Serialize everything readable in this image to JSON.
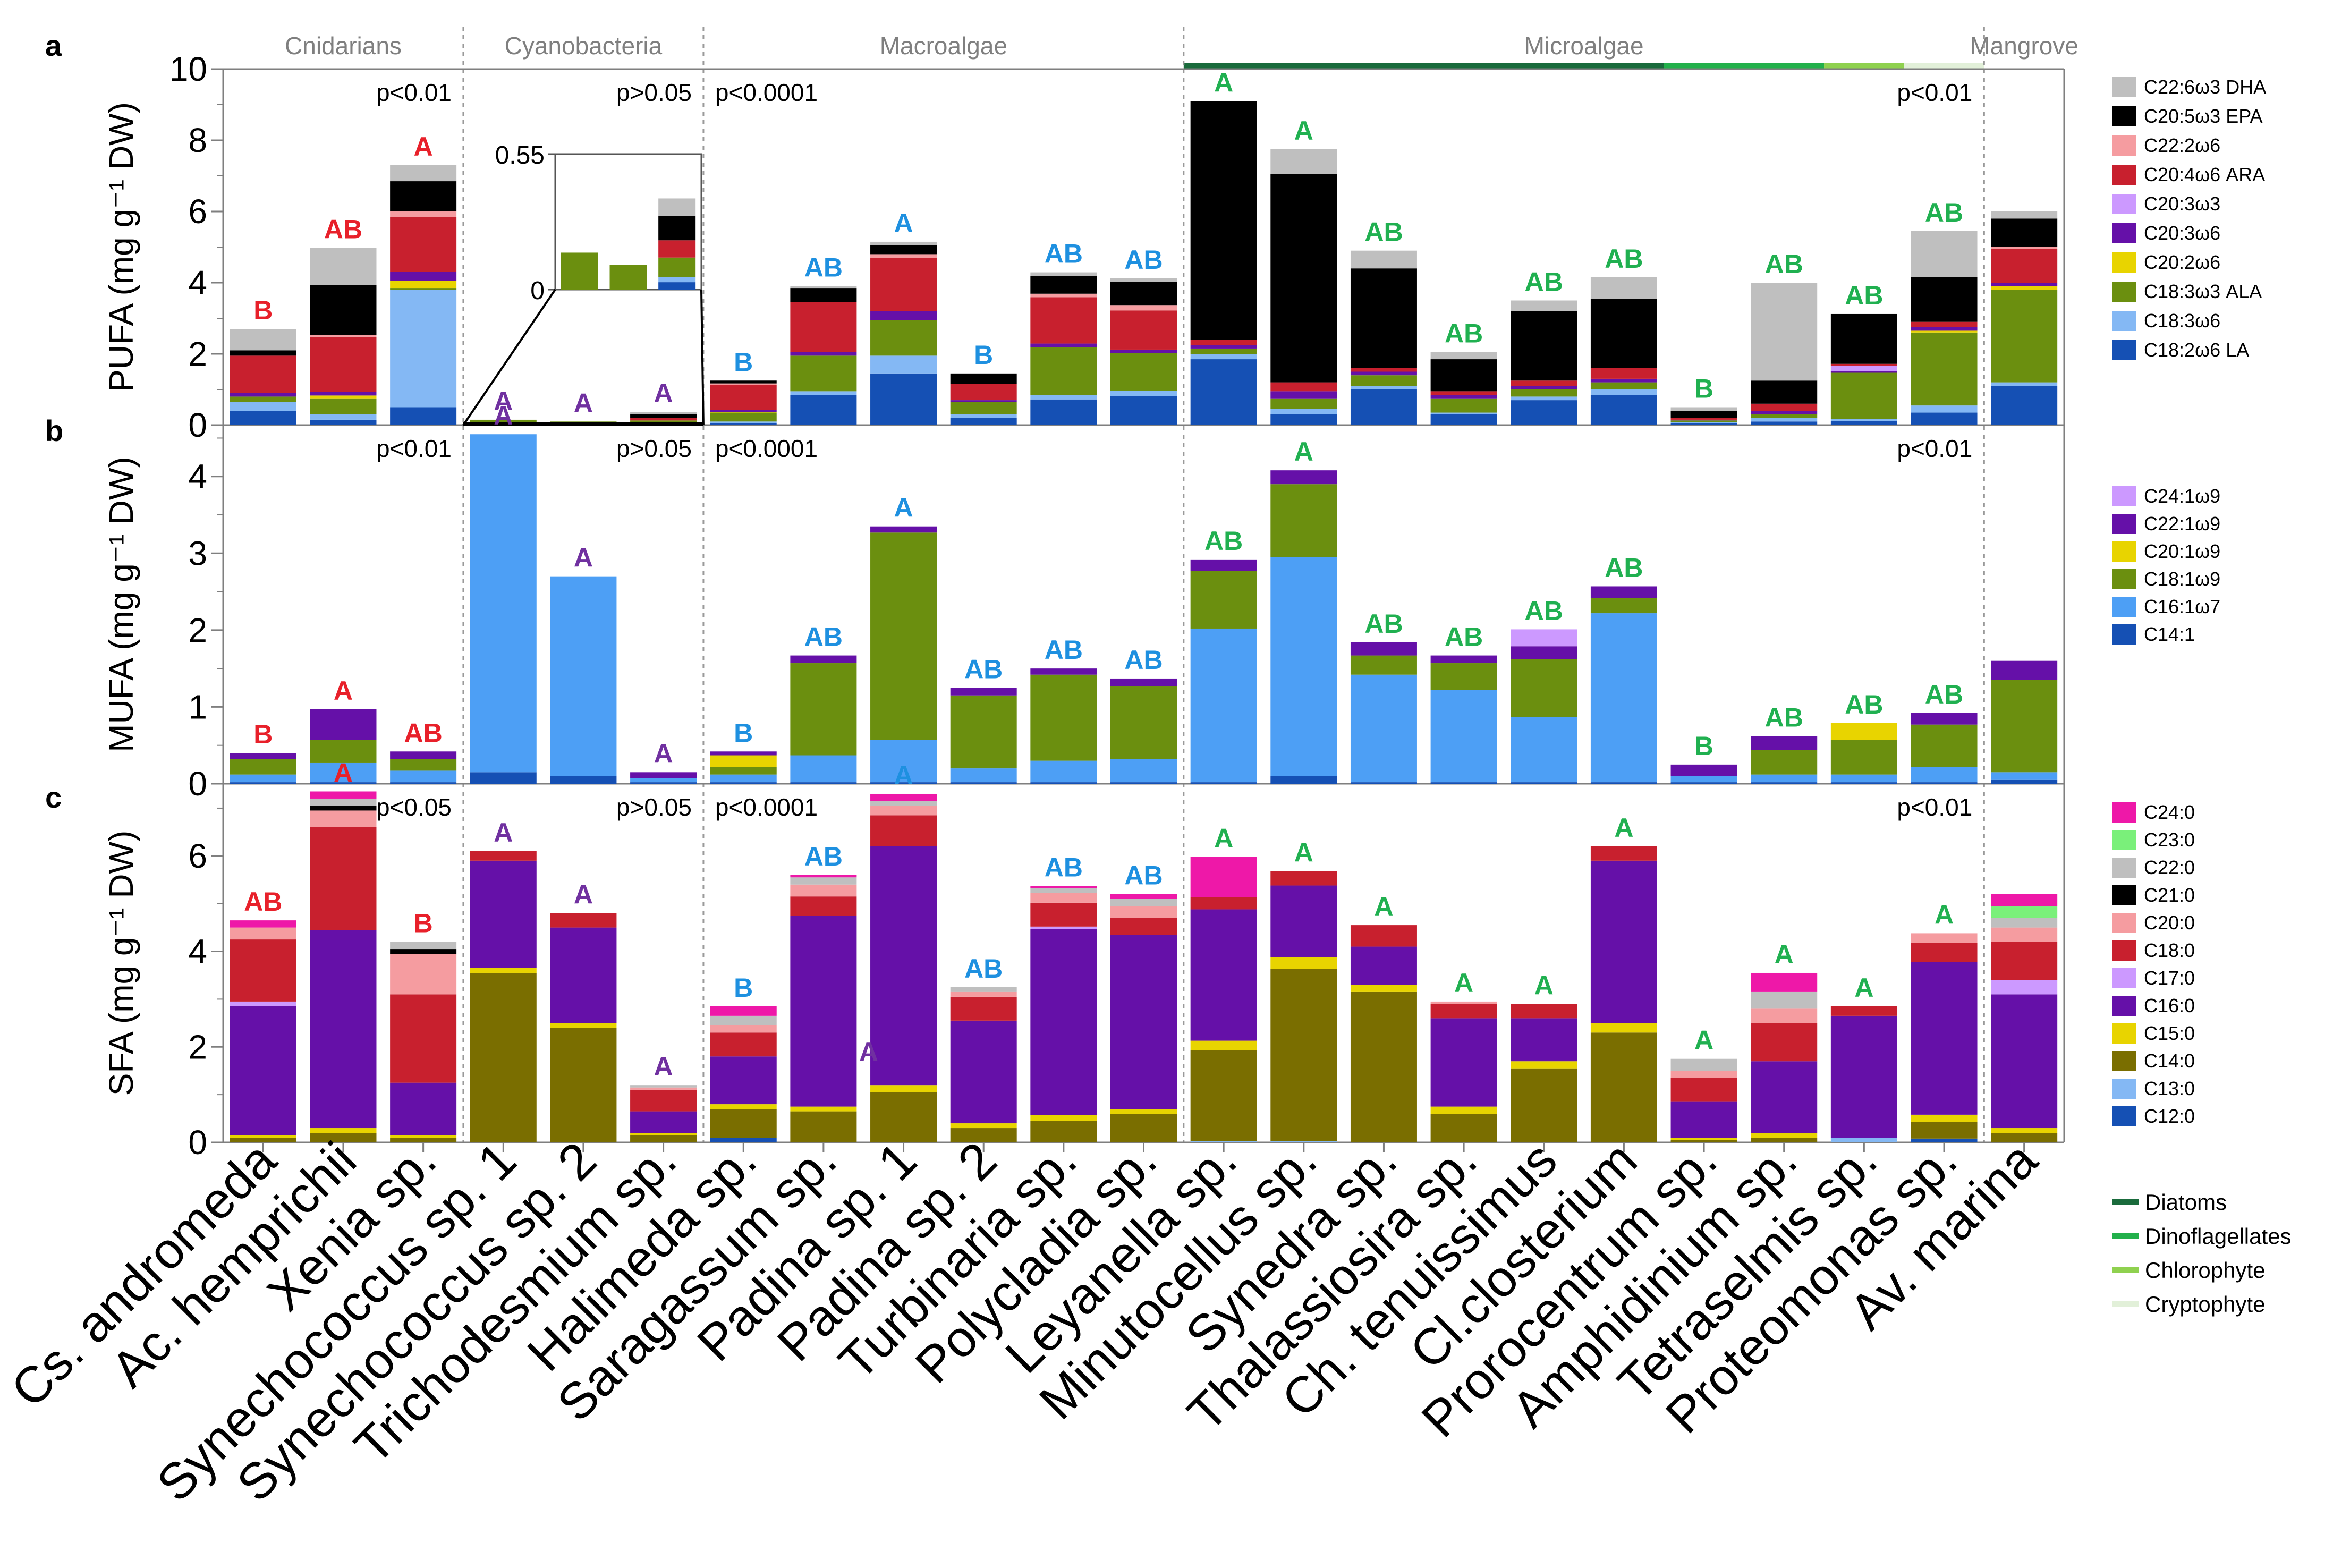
{
  "figure": {
    "group_labels": [
      "Cnidarians",
      "Cyanobacteria",
      "Macroalgae",
      "Microalgae",
      "Mangrove"
    ],
    "microalgae_classes": [
      {
        "name": "Diatoms",
        "color": "#1a6b3c"
      },
      {
        "name": "Dinoflagellates",
        "color": "#22b04b"
      },
      {
        "name": "Chlorophyte",
        "color": "#8fd14f"
      },
      {
        "name": "Cryptophyte",
        "color": "#e2f0d9"
      }
    ],
    "microalgae_bar_spans": [
      [
        "Leyanella sp.",
        "Cl.closterium"
      ],
      [
        "Prorocentrum sp.",
        "Amphidinium sp."
      ],
      [
        "Tetraselmis sp."
      ],
      [
        "Proteomonas sp."
      ]
    ],
    "taxa": [
      "Cs. andromeda",
      "Ac. hemprichii",
      "Xenia sp.",
      "Synechococcus sp. 1",
      "Synechococcus sp. 2",
      "Trichodesmium sp.",
      "Halimeda sp.",
      "Saragassum sp.",
      "Padina sp. 1",
      "Padina sp. 2",
      "Turbinaria sp.",
      "Polycladia sp.",
      "Leyanella sp.",
      "Minutocellus sp.",
      "Synedra sp.",
      "Thalassiosira sp.",
      "Ch. tenuissimus",
      "Cl.closterium",
      "Prorocentrum sp.",
      "Amphidinium sp.",
      "Tetraselmis sp.",
      "Proteomonas sp.",
      "Av. marina"
    ],
    "group_of_taxon": [
      0,
      0,
      0,
      1,
      1,
      1,
      2,
      2,
      2,
      2,
      2,
      2,
      3,
      3,
      3,
      3,
      3,
      3,
      3,
      3,
      3,
      3,
      4
    ],
    "letter_colors": [
      "#e8202a",
      "#7030a0",
      "#1e90e0",
      "#20b050",
      "#000000"
    ]
  },
  "chart_data": [
    {
      "panel": "a",
      "type": "bar",
      "stacked": true,
      "ylabel": "PUFA (mg g⁻¹ DW)",
      "ylim": [
        0,
        10
      ],
      "yticks": [
        "0",
        "2",
        "4",
        "6",
        "8",
        "10"
      ],
      "group_pvalues": [
        "p<0.01",
        "p>0.05",
        "p<0.0001",
        "p<0.01",
        ""
      ],
      "categories": [
        "Cs. andromeda",
        "Ac. hemprichii",
        "Xenia sp.",
        "Synechococcus sp. 1",
        "Synechococcus sp. 2",
        "Trichodesmium sp.",
        "Halimeda sp.",
        "Saragassum sp.",
        "Padina sp. 1",
        "Padina sp. 2",
        "Turbinaria sp.",
        "Polycladia sp.",
        "Leyanella sp.",
        "Minutocellus sp.",
        "Synedra sp.",
        "Thalassiosira sp.",
        "Ch. tenuissimus",
        "Cl.closterium",
        "Prorocentrum sp.",
        "Amphidinium sp.",
        "Tetraselmis sp.",
        "Proteomonas sp.",
        "Av. marina"
      ],
      "letters": [
        "B",
        "AB",
        "A",
        "A",
        "A",
        "A",
        "B",
        "AB",
        "A",
        "B",
        "AB",
        "AB",
        "A",
        "A",
        "AB",
        "AB",
        "AB",
        "AB",
        "B",
        "AB",
        "AB",
        "AB",
        ""
      ],
      "series": [
        {
          "name": "C18:2ω6 LA",
          "color": "#1550b4",
          "values": [
            0.4,
            0.15,
            0.5,
            0,
            0,
            0.03,
            0.05,
            0.85,
            1.45,
            0.2,
            0.72,
            0.82,
            1.85,
            0.3,
            1.0,
            0.3,
            0.7,
            0.85,
            0.05,
            0.1,
            0.12,
            0.35,
            1.1
          ]
        },
        {
          "name": "C18:3ω6",
          "color": "#84b8f4",
          "values": [
            0.25,
            0.15,
            3.3,
            0,
            0,
            0.02,
            0.05,
            0.1,
            0.5,
            0.1,
            0.12,
            0.15,
            0.15,
            0.15,
            0.1,
            0.05,
            0.1,
            0.15,
            0.03,
            0.1,
            0.05,
            0.2,
            0.1
          ]
        },
        {
          "name": "C18:3ω3 ALA",
          "color": "#6b8f0f",
          "values": [
            0.15,
            0.45,
            0.05,
            0.15,
            0.1,
            0.08,
            0.25,
            1.0,
            1.0,
            0.35,
            1.35,
            1.05,
            0.15,
            0.3,
            0.3,
            0.4,
            0.2,
            0.2,
            0.05,
            0.1,
            1.3,
            2.05,
            2.6
          ]
        },
        {
          "name": "C20:2ω6",
          "color": "#e8d400",
          "values": [
            0,
            0.08,
            0.2,
            0,
            0,
            0,
            0.02,
            0,
            0,
            0,
            0,
            0,
            0,
            0,
            0,
            0,
            0,
            0,
            0,
            0,
            0,
            0.05,
            0.1
          ]
        },
        {
          "name": "C20:3ω6",
          "color": "#6510a8",
          "values": [
            0.1,
            0.1,
            0.25,
            0,
            0,
            0,
            0.05,
            0.1,
            0.25,
            0.05,
            0.1,
            0.1,
            0.1,
            0.2,
            0.1,
            0.1,
            0.1,
            0.1,
            0.02,
            0.1,
            0.05,
            0.1,
            0.1
          ]
        },
        {
          "name": "C20:3ω3",
          "color": "#cc99ff",
          "values": [
            0,
            0,
            0,
            0,
            0,
            0,
            0,
            0,
            0,
            0,
            0,
            0,
            0,
            0,
            0,
            0,
            0,
            0,
            0,
            0,
            0.15,
            0,
            0
          ]
        },
        {
          "name": "C20:4ω6 ARA",
          "color": "#c8202e",
          "values": [
            1.05,
            1.55,
            1.55,
            0,
            0,
            0.07,
            0.7,
            1.4,
            1.5,
            0.45,
            1.3,
            1.1,
            0.15,
            0.25,
            0.1,
            0.1,
            0.15,
            0.3,
            0.05,
            0.2,
            0.05,
            0.15,
            0.95
          ]
        },
        {
          "name": "C22:2ω6",
          "color": "#f59ca0",
          "values": [
            0,
            0.05,
            0.15,
            0,
            0,
            0,
            0.05,
            0,
            0.1,
            0,
            0.1,
            0.15,
            0,
            0,
            0,
            0,
            0,
            0,
            0,
            0,
            0,
            0,
            0.05
          ]
        },
        {
          "name": "C20:5ω3 EPA",
          "color": "#000000",
          "values": [
            0.15,
            1.4,
            0.85,
            0,
            0,
            0.1,
            0.08,
            0.4,
            0.25,
            0.3,
            0.5,
            0.65,
            6.7,
            5.85,
            2.8,
            0.9,
            1.95,
            1.95,
            0.2,
            0.65,
            1.4,
            1.25,
            0.8
          ]
        },
        {
          "name": "C22:6ω3 DHA",
          "color": "#bfbfbf",
          "values": [
            0.6,
            1.05,
            0.45,
            0,
            0,
            0.07,
            0,
            0.05,
            0.1,
            0,
            0.1,
            0.1,
            0,
            0.7,
            0.5,
            0.2,
            0.3,
            0.6,
            0.1,
            2.75,
            0,
            1.3,
            0.2
          ]
        }
      ],
      "inset": {
        "ylim": [
          0,
          0.55
        ],
        "yticks": [
          "0",
          "0.55"
        ]
      }
    },
    {
      "panel": "b",
      "type": "bar",
      "stacked": true,
      "ylabel": "MUFA (mg g⁻¹ DW)",
      "ylim": [
        0,
        4.6
      ],
      "yticks": [
        "0",
        "1",
        "2",
        "3",
        "4"
      ],
      "group_pvalues": [
        "p<0.01",
        "p>0.05",
        "p<0.0001",
        "p<0.01",
        ""
      ],
      "categories": [
        "Cs. andromeda",
        "Ac. hemprichii",
        "Xenia sp.",
        "Synechococcus sp. 1",
        "Synechococcus sp. 2",
        "Trichodesmium sp.",
        "Halimeda sp.",
        "Saragassum sp.",
        "Padina sp. 1",
        "Padina sp. 2",
        "Turbinaria sp.",
        "Polycladia sp.",
        "Leyanella sp.",
        "Minutocellus sp.",
        "Synedra sp.",
        "Thalassiosira sp.",
        "Ch. tenuissimus",
        "Cl.closterium",
        "Prorocentrum sp.",
        "Amphidinium sp.",
        "Tetraselmis sp.",
        "Proteomonas sp.",
        "Av. marina"
      ],
      "letters": [
        "B",
        "A",
        "AB",
        "A",
        "A",
        "A",
        "B",
        "AB",
        "A",
        "AB",
        "AB",
        "AB",
        "AB",
        "A",
        "AB",
        "AB",
        "AB",
        "AB",
        "B",
        "AB",
        "AB",
        "AB",
        ""
      ],
      "series": [
        {
          "name": "C14:1",
          "color": "#1550b4",
          "values": [
            0.02,
            0.02,
            0.02,
            0.15,
            0.1,
            0.02,
            0.02,
            0.02,
            0.02,
            0.02,
            0.02,
            0.02,
            0.02,
            0.1,
            0.02,
            0.02,
            0.02,
            0.02,
            0.02,
            0.02,
            0.02,
            0.02,
            0.05
          ]
        },
        {
          "name": "C16:1ω7",
          "color": "#4d9ff5",
          "values": [
            0.1,
            0.25,
            0.15,
            4.4,
            2.6,
            0.05,
            0.1,
            0.35,
            0.55,
            0.18,
            0.28,
            0.3,
            2.0,
            2.85,
            1.4,
            1.2,
            0.85,
            2.2,
            0.08,
            0.1,
            0.1,
            0.2,
            0.1
          ]
        },
        {
          "name": "C18:1ω9",
          "color": "#6b8f0f",
          "values": [
            0.2,
            0.3,
            0.15,
            0,
            0,
            0,
            0.1,
            1.2,
            2.7,
            0.95,
            1.12,
            0.95,
            0.75,
            0.95,
            0.25,
            0.35,
            0.75,
            0.2,
            0,
            0.32,
            0.45,
            0.55,
            1.2
          ]
        },
        {
          "name": "C20:1ω9",
          "color": "#e8d400",
          "values": [
            0,
            0,
            0,
            0,
            0,
            0,
            0.15,
            0,
            0,
            0,
            0,
            0,
            0,
            0,
            0,
            0,
            0,
            0,
            0,
            0,
            0.22,
            0,
            0
          ]
        },
        {
          "name": "C22:1ω9",
          "color": "#6510a8",
          "values": [
            0.08,
            0.4,
            0.1,
            0,
            0,
            0.08,
            0.05,
            0.1,
            0.08,
            0.1,
            0.08,
            0.1,
            0.15,
            0.18,
            0.17,
            0.1,
            0.17,
            0.15,
            0.15,
            0.18,
            0,
            0.15,
            0.25
          ]
        },
        {
          "name": "C24:1ω9",
          "color": "#cc99ff",
          "values": [
            0,
            0,
            0,
            0,
            0,
            0,
            0,
            0,
            0,
            0,
            0,
            0,
            0,
            0,
            0,
            0,
            0.22,
            0,
            0,
            0,
            0,
            0,
            0
          ]
        }
      ]
    },
    {
      "panel": "c",
      "type": "bar",
      "stacked": true,
      "ylabel": "SFA (mg g⁻¹ DW)",
      "ylim": [
        0,
        7.4
      ],
      "yticks": [
        "0",
        "2",
        "4",
        "6"
      ],
      "group_pvalues": [
        "p<0.05",
        "p>0.05",
        "p<0.0001",
        "p<0.01",
        ""
      ],
      "categories": [
        "Cs. andromeda",
        "Ac. hemprichii",
        "Xenia sp.",
        "Synechococcus sp. 1",
        "Synechococcus sp. 2",
        "Trichodesmium sp.",
        "Halimeda sp.",
        "Saragassum sp.",
        "Padina sp. 1",
        "Padina sp. 2",
        "Turbinaria sp.",
        "Polycladia sp.",
        "Leyanella sp.",
        "Minutocellus sp.",
        "Synedra sp.",
        "Thalassiosira sp.",
        "Ch. tenuissimus",
        "Cl.closterium",
        "Prorocentrum sp.",
        "Amphidinium sp.",
        "Tetraselmis sp.",
        "Proteomonas sp.",
        "Av. marina"
      ],
      "letters": [
        "AB",
        "A",
        "B",
        "A",
        "A",
        "A",
        "B",
        "AB",
        "A",
        "AB",
        "AB",
        "AB",
        "A",
        "A",
        "A",
        "A",
        "A",
        "A",
        "A",
        "A",
        "A",
        "A",
        ""
      ],
      "extra_label": {
        "text": "A",
        "category": "Saragassum sp.",
        "value": 1.7
      },
      "series": [
        {
          "name": "C12:0",
          "color": "#1550b4",
          "values": [
            0,
            0,
            0,
            0,
            0,
            0,
            0.1,
            0,
            0,
            0,
            0,
            0,
            0,
            0,
            0,
            0,
            0,
            0,
            0,
            0,
            0,
            0.08,
            0
          ]
        },
        {
          "name": "C13:0",
          "color": "#84b8f4",
          "values": [
            0,
            0,
            0,
            0,
            0,
            0,
            0,
            0,
            0,
            0,
            0,
            0,
            0.03,
            0.03,
            0,
            0,
            0,
            0,
            0,
            0,
            0.1,
            0,
            0
          ]
        },
        {
          "name": "C14:0",
          "color": "#7a6e00",
          "values": [
            0.1,
            0.2,
            0.1,
            3.55,
            2.4,
            0.15,
            0.6,
            0.65,
            1.05,
            0.3,
            0.45,
            0.6,
            1.9,
            3.6,
            3.15,
            0.6,
            1.55,
            2.3,
            0.05,
            0.1,
            0,
            0.35,
            0.2
          ]
        },
        {
          "name": "C15:0",
          "color": "#e8d400",
          "values": [
            0.05,
            0.1,
            0.05,
            0.1,
            0.1,
            0.05,
            0.1,
            0.1,
            0.15,
            0.1,
            0.12,
            0.1,
            0.2,
            0.25,
            0.15,
            0.15,
            0.15,
            0.2,
            0.05,
            0.1,
            0,
            0.15,
            0.1
          ]
        },
        {
          "name": "C16:0",
          "color": "#6510a8",
          "values": [
            2.7,
            4.15,
            1.1,
            2.25,
            2.0,
            0.45,
            1.0,
            4.0,
            5.0,
            2.15,
            3.9,
            3.65,
            2.75,
            1.5,
            0.8,
            1.85,
            0.9,
            3.4,
            0.75,
            1.5,
            2.55,
            3.2,
            2.8
          ]
        },
        {
          "name": "C17:0",
          "color": "#cc99ff",
          "values": [
            0.1,
            0,
            0,
            0,
            0,
            0,
            0,
            0,
            0,
            0,
            0.05,
            0,
            0,
            0,
            0,
            0,
            0,
            0,
            0,
            0,
            0,
            0,
            0.3
          ]
        },
        {
          "name": "C18:0",
          "color": "#c8202e",
          "values": [
            1.3,
            2.15,
            1.85,
            0.2,
            0.3,
            0.45,
            0.5,
            0.4,
            0.65,
            0.5,
            0.5,
            0.35,
            0.25,
            0.3,
            0.45,
            0.3,
            0.3,
            0.3,
            0.5,
            0.8,
            0.2,
            0.4,
            0.8
          ]
        },
        {
          "name": "C20:0",
          "color": "#f59ca0",
          "values": [
            0.25,
            0.35,
            0.85,
            0,
            0,
            0.05,
            0.15,
            0.25,
            0.2,
            0.1,
            0.2,
            0.25,
            0,
            0,
            0,
            0.05,
            0,
            0,
            0.15,
            0.3,
            0,
            0.2,
            0.3
          ]
        },
        {
          "name": "C21:0",
          "color": "#000000",
          "values": [
            0,
            0.1,
            0.1,
            0,
            0,
            0,
            0,
            0,
            0,
            0,
            0,
            0,
            0,
            0,
            0,
            0,
            0,
            0,
            0,
            0,
            0,
            0,
            0
          ]
        },
        {
          "name": "C22:0",
          "color": "#bfbfbf",
          "values": [
            0,
            0.15,
            0.15,
            0,
            0,
            0.05,
            0.2,
            0.15,
            0.1,
            0.1,
            0.1,
            0.15,
            0,
            0,
            0,
            0,
            0,
            0,
            0.25,
            0.35,
            0,
            0,
            0.2
          ]
        },
        {
          "name": "C23:0",
          "color": "#7af07a",
          "values": [
            0,
            0,
            0,
            0,
            0,
            0,
            0,
            0,
            0,
            0,
            0,
            0,
            0,
            0,
            0,
            0,
            0,
            0,
            0,
            0,
            0,
            0,
            0.25
          ]
        },
        {
          "name": "C24:0",
          "color": "#ee18a8",
          "values": [
            0.15,
            0.15,
            0,
            0,
            0,
            0,
            0.2,
            0.05,
            0.15,
            0,
            0.05,
            0.1,
            0.85,
            0,
            0,
            0,
            0,
            0,
            0,
            0.4,
            0,
            0,
            0.25
          ]
        }
      ]
    }
  ]
}
